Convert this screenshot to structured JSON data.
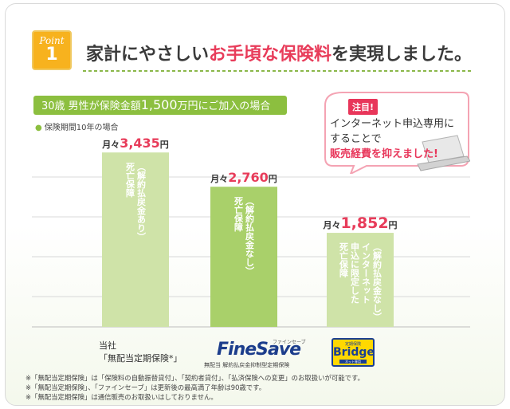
{
  "point": {
    "label": "Point",
    "number": "1"
  },
  "headline": {
    "pre": "家計にやさしい",
    "highlight": "お手頃な保険料",
    "post": "を実現しました。"
  },
  "condition": {
    "pre": "30歳 男性が保険金額",
    "amount": "1,500",
    "post": "万円にご加入の場合"
  },
  "period_note": {
    "bullet": "●",
    "text": "保険期間10年の場合"
  },
  "callout": {
    "tag": "注目!",
    "line1": "インターネット申込専用に",
    "line2": "することで",
    "line3": "販売経費を抑えました!"
  },
  "colors": {
    "accent_green": "#8cbf3f",
    "bar_green_light": "#cfe3a8",
    "bar_green_mid": "#a9d06a",
    "highlight_red": "#e83c5a",
    "badge_orange": "#f7b21e"
  },
  "chart_data": {
    "type": "bar",
    "unit": "円",
    "value_prefix": "月々",
    "categories": [
      "当社「無配当定期保険*」",
      "FineSave",
      "Bridge"
    ],
    "values": [
      3435,
      2760,
      1852
    ],
    "value_labels": [
      "3,435",
      "2,760",
      "1,852"
    ],
    "bar_captions": [
      [
        "（解約払戻金あり）",
        "死亡保障"
      ],
      [
        "（解約払戻金なし）",
        "死亡保障"
      ],
      [
        "（解約払戻金なし）",
        "インターネット",
        "申込に限定した",
        "死亡保障"
      ]
    ],
    "ylim": [
      0,
      3800
    ],
    "grid": true,
    "title": "",
    "xlabel": "",
    "ylabel": ""
  },
  "products": {
    "own_line1": "当社",
    "own_line2": "「無配当定期保険*」",
    "finesave_logo": "FineSave",
    "finesave_kana": "ファインセーブ",
    "finesave_caption": "無配当 解約払戻金抑制型定期保険",
    "bridge_top": "定期保険",
    "bridge_logo": "Bridge",
    "bridge_bottom": "ネット専用"
  },
  "footnotes": [
    "※「無配当定期保険」は「保険料の自動振替貸付」、「契約者貸付」、「払済保険への変更」のお取扱いが可能です。",
    "※「無配当定期保険」、「ファインセーブ」は更新後の最高満了年齢は90歳です。",
    "※「無配当定期保険」は通信販売のお取扱いはしておりません。"
  ]
}
